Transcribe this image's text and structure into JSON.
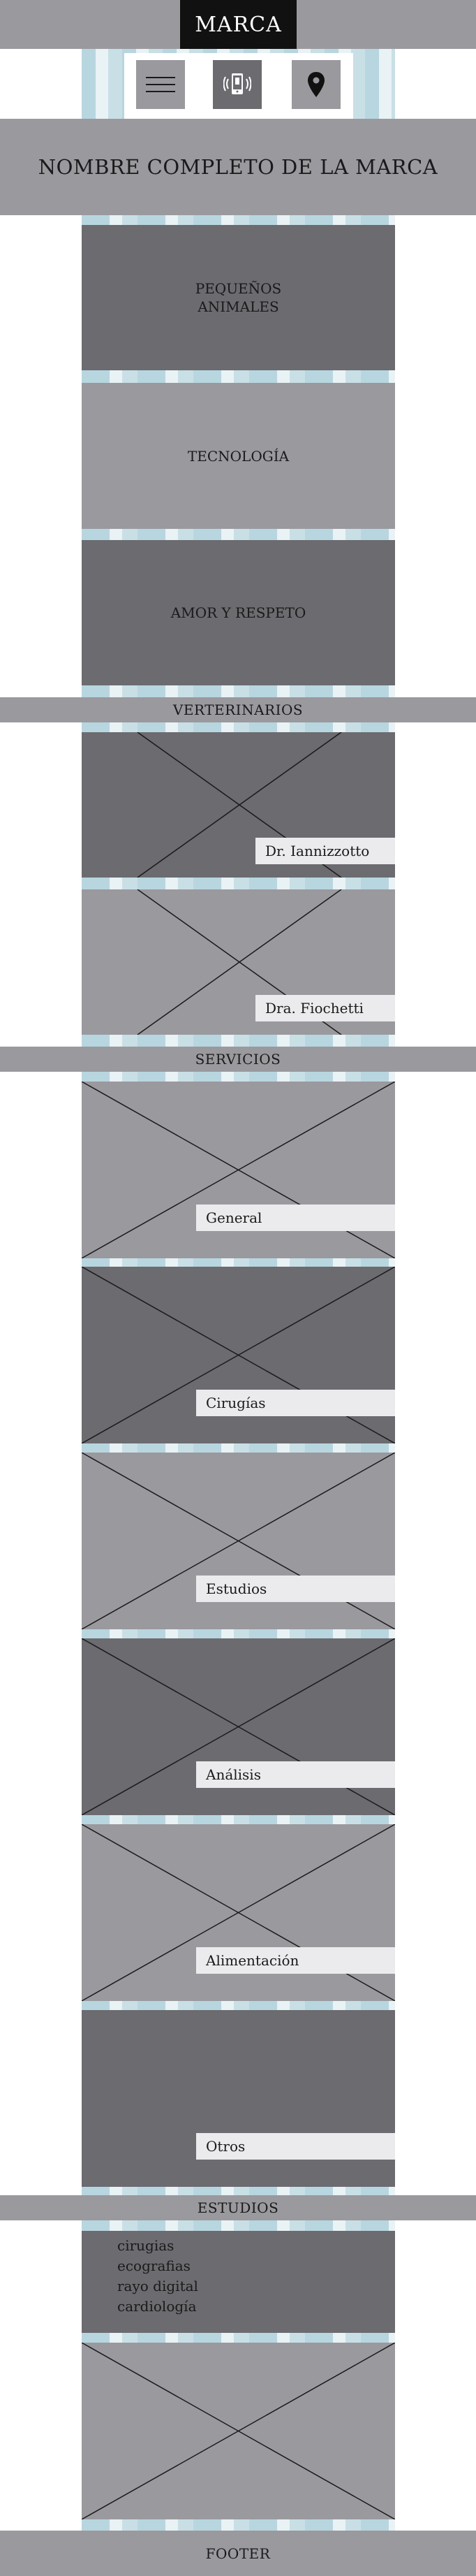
{
  "header": {
    "brand": "MARCA"
  },
  "nav": {
    "menu_icon": "hamburger-menu-icon",
    "phone_icon": "phone-icon",
    "location_icon": "map-pin-icon"
  },
  "brand_full_name": "NOMBRE COMPLETO DE LA MARCA",
  "features": [
    {
      "line1": "PEQUEÑOS",
      "line2": "ANIMALES"
    },
    {
      "line1": "TECNOLOGÍA",
      "line2": ""
    },
    {
      "line1": "AMOR Y RESPETO",
      "line2": ""
    }
  ],
  "vets": {
    "title": "VERTERINARIOS",
    "items": [
      {
        "name": "Dr. Iannizzotto"
      },
      {
        "name": "Dra. Fiochetti"
      }
    ]
  },
  "services": {
    "title": "SERVICIOS",
    "items": [
      {
        "label": "General"
      },
      {
        "label": "Cirugías"
      },
      {
        "label": "Estudios"
      },
      {
        "label": "Análisis"
      },
      {
        "label": "Alimentación"
      },
      {
        "label": "Otros"
      }
    ]
  },
  "studies": {
    "title": "ESTUDIOS",
    "items": [
      "cirugias",
      "ecografias",
      "rayo digital",
      "cardiología"
    ]
  },
  "footer": {
    "label": "FOOTER"
  },
  "colors": {
    "gray_light": "#9a999e",
    "gray_dark": "#6b6b70",
    "stripe_blue": "#b8d6df",
    "tag_bg": "#ebebed"
  }
}
